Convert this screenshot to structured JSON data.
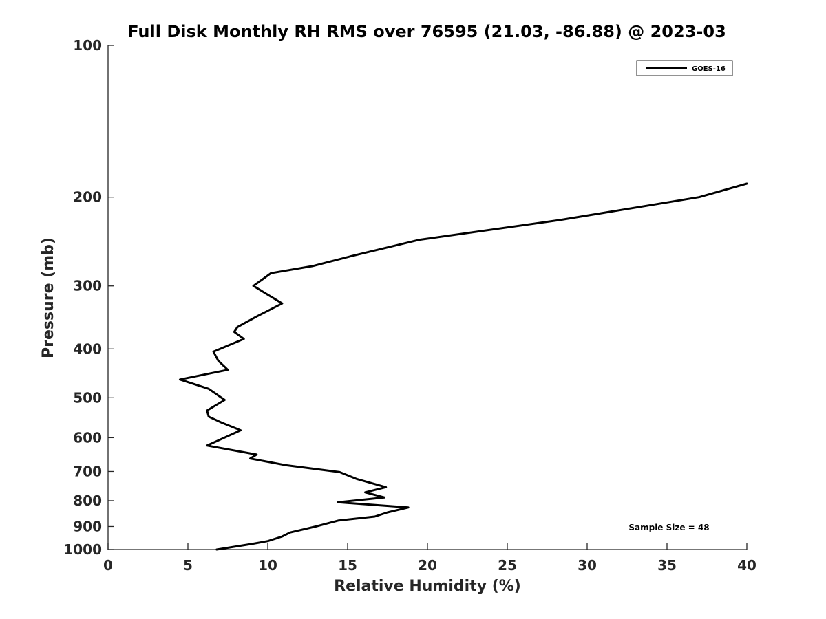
{
  "chart_data": {
    "type": "line",
    "title": "Full Disk Monthly RH RMS over 76595 (21.03, -86.88) @ 2023-03",
    "xlabel": "Relative Humidity (%)",
    "ylabel": "Pressure (mb)",
    "xlim": [
      0,
      40
    ],
    "ylim": [
      100,
      1000
    ],
    "yscale": "log",
    "y_reversed": true,
    "xticks": [
      0,
      5,
      10,
      15,
      20,
      25,
      30,
      35,
      40
    ],
    "yticks": [
      100,
      200,
      300,
      400,
      500,
      600,
      700,
      800,
      900,
      1000
    ],
    "grid": false,
    "legend_position": "top-right",
    "series": [
      {
        "name": "GOES-16",
        "color": "#000000",
        "points": [
          [
            6.8,
            1000
          ],
          [
            9.0,
            975
          ],
          [
            10.0,
            962
          ],
          [
            10.9,
            942
          ],
          [
            11.4,
            925
          ],
          [
            13.0,
            900
          ],
          [
            14.4,
            876
          ],
          [
            16.7,
            860
          ],
          [
            17.5,
            844
          ],
          [
            18.8,
            825
          ],
          [
            14.4,
            806
          ],
          [
            17.3,
            788
          ],
          [
            16.1,
            770
          ],
          [
            17.4,
            752
          ],
          [
            15.6,
            725
          ],
          [
            14.5,
            702
          ],
          [
            11.1,
            680
          ],
          [
            8.9,
            660
          ],
          [
            9.3,
            648
          ],
          [
            6.2,
            622
          ],
          [
            8.3,
            580
          ],
          [
            7.1,
            560
          ],
          [
            6.3,
            545
          ],
          [
            6.2,
            530
          ],
          [
            7.3,
            505
          ],
          [
            6.3,
            480
          ],
          [
            4.5,
            460
          ],
          [
            7.5,
            440
          ],
          [
            6.9,
            422
          ],
          [
            6.6,
            405
          ],
          [
            8.5,
            382
          ],
          [
            7.9,
            370
          ],
          [
            8.1,
            362
          ],
          [
            9.3,
            345
          ],
          [
            10.9,
            325
          ],
          [
            9.1,
            300
          ],
          [
            10.2,
            283
          ],
          [
            12.8,
            274
          ],
          [
            15.2,
            262
          ],
          [
            19.5,
            243
          ],
          [
            28.3,
            222
          ],
          [
            37.0,
            200
          ],
          [
            40.0,
            188
          ]
        ]
      }
    ],
    "annotation": "Sample Size = 48"
  }
}
